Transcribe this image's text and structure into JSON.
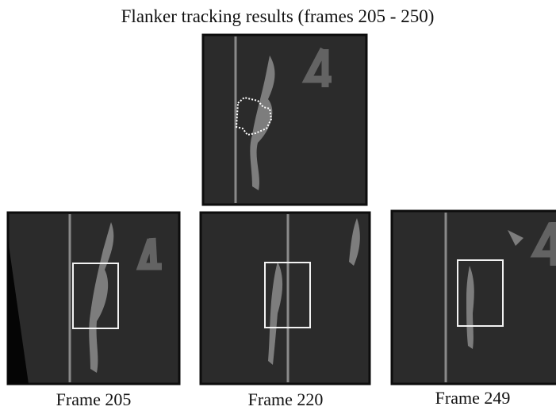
{
  "figure": {
    "title": "Flanker tracking results (frames 205 - 250)",
    "panels": [
      {
        "caption": "Frame 205"
      },
      {
        "caption": "Frame 220"
      },
      {
        "caption": "Frame 249"
      }
    ]
  }
}
